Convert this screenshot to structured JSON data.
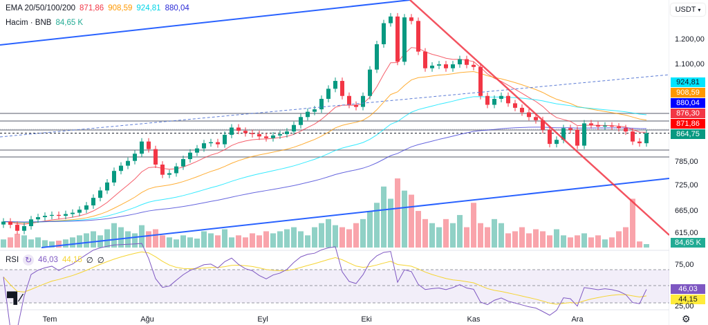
{
  "legend": {
    "ema_label": "EMA 20/50/100/200",
    "ema_values": [
      "871,86",
      "908,59",
      "924,81",
      "880,04"
    ],
    "volume_label": "Hacim · BNB",
    "volume_value": "84,65 K",
    "rsi_label": "RSI",
    "rsi_value": "46,03",
    "rsi_ma_value": "44,15",
    "rsi_extra": [
      "∅",
      "∅"
    ]
  },
  "currency_button": "USDT",
  "price_axis": [
    "1.200,00",
    "1.100,00",
    "785,00",
    "725,00",
    "665,00",
    "615,00"
  ],
  "price_badges": [
    {
      "value": "924,81",
      "color": "#00e5ff",
      "text": "#131722"
    },
    {
      "value": "908,59",
      "color": "#ff9800",
      "text": "#ffffff"
    },
    {
      "value": "880,04",
      "color": "#0000ff",
      "text": "#ffffff"
    },
    {
      "value": "876,30",
      "color": "#f23645",
      "text": "#ffffff"
    },
    {
      "value": "871,86",
      "color": "#ff0000",
      "text": "#ffffff"
    },
    {
      "value": "864,75",
      "color": "#089981",
      "text": "#ffffff"
    }
  ],
  "volume_badge": "84,65 K",
  "rsi_axis": [
    "75,00",
    "25,00"
  ],
  "rsi_badges": [
    {
      "value": "46,03",
      "color": "#7e57c2",
      "text": "#ffffff"
    },
    {
      "value": "44,15",
      "color": "#ffeb3b",
      "text": "#131722"
    }
  ],
  "time_axis": [
    "Tem",
    "Ağu",
    "Eyl",
    "Eki",
    "Kas",
    "Ara"
  ],
  "colors": {
    "up": "#089981",
    "down": "#f23645",
    "ema20": "#f23645",
    "ema50": "#ff9800",
    "ema100": "#00e5ff",
    "ema200": "#3f3fd6",
    "rsi": "#7e57c2",
    "rsi_ma": "#f5d431"
  },
  "chart_data": {
    "type": "candlestick",
    "symbol_quote": "USDT",
    "scale": "log",
    "ylim": [
      580,
      1320
    ],
    "horizontal_levels": [
      876.3,
      864.75
    ],
    "closes": [
      635,
      628,
      615,
      625,
      640,
      645,
      648,
      650,
      648,
      652,
      655,
      662,
      672,
      690,
      708,
      728,
      758,
      772,
      785,
      805,
      840,
      818,
      775,
      748,
      752,
      770,
      790,
      808,
      820,
      835,
      838,
      832,
      860,
      882,
      872,
      865,
      862,
      855,
      850,
      858,
      862,
      870,
      890,
      915,
      932,
      940,
      975,
      1010,
      1038,
      985,
      955,
      948,
      985,
      1080,
      1180,
      1270,
      1300,
      1110,
      1296,
      1280,
      1150,
      1085,
      1095,
      1100,
      1085,
      1100,
      1120,
      1098,
      1090,
      985,
      955,
      975,
      985,
      960,
      945,
      930,
      915,
      905,
      875,
      833,
      845,
      880,
      875,
      828,
      895,
      890,
      885,
      888,
      885,
      880,
      870,
      840,
      835,
      865
    ],
    "volumes_k": [
      200,
      250,
      340,
      300,
      200,
      250,
      180,
      150,
      170,
      200,
      250,
      300,
      350,
      400,
      300,
      450,
      600,
      500,
      400,
      350,
      550,
      400,
      450,
      300,
      250,
      200,
      300,
      250,
      220,
      400,
      350,
      300,
      450,
      250,
      300,
      250,
      350,
      300,
      400,
      350,
      400,
      450,
      500,
      400,
      300,
      500,
      600,
      700,
      550,
      500,
      450,
      600,
      700,
      900,
      1100,
      1500,
      1200,
      1700,
      1400,
      1300,
      900,
      700,
      600,
      500,
      700,
      600,
      800,
      500,
      1100,
      600,
      500,
      700,
      600,
      350,
      400,
      500,
      350,
      450,
      400,
      300,
      450,
      300,
      250,
      300,
      350,
      250,
      300,
      200,
      250,
      400,
      500,
      1200,
      150,
      85
    ],
    "rsi_levels": [
      70,
      50,
      30
    ],
    "x_labels": [
      "Tem",
      "Ağu",
      "Eyl",
      "Eki",
      "Kas",
      "Ara"
    ]
  }
}
